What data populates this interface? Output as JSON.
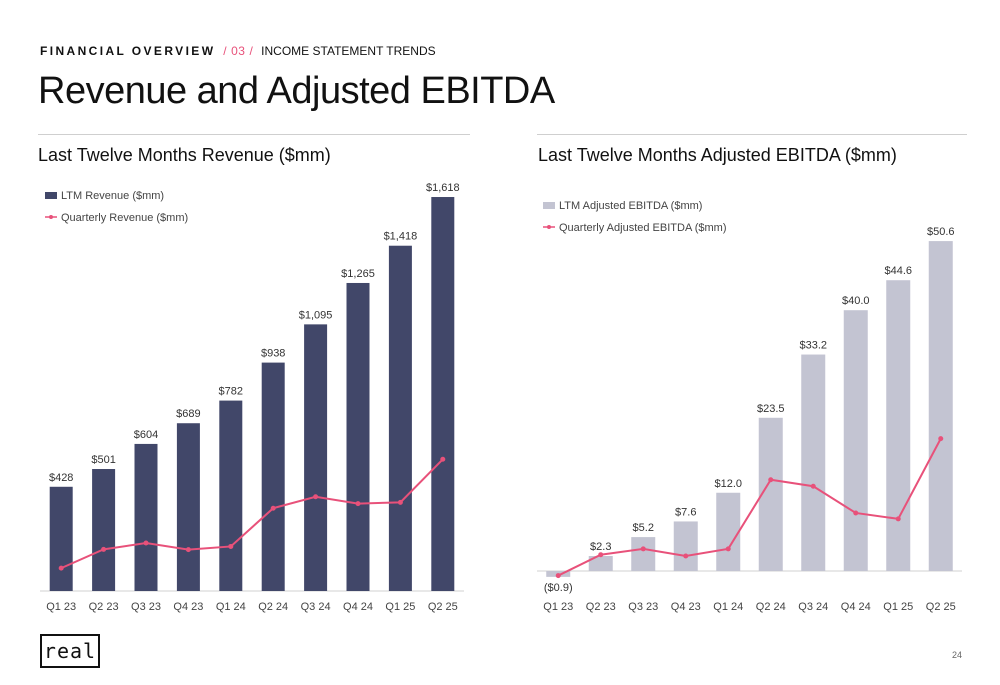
{
  "header": {
    "section": "FINANCIAL OVERVIEW",
    "separator": "/",
    "number": "03",
    "topic": "INCOME STATEMENT TRENDS",
    "title": "Revenue and Adjusted EBITDA"
  },
  "footer": {
    "logo_text": "real",
    "page_number": "24"
  },
  "colors": {
    "navy_bar": "#414769",
    "grey_bar": "#c3c4d2",
    "line_pink": "#e8517a"
  },
  "chart_data": [
    {
      "type": "bar",
      "title": "Last Twelve Months Revenue ($mm)",
      "categories": [
        "Q1 23",
        "Q2 23",
        "Q3 23",
        "Q4 23",
        "Q1 24",
        "Q2 24",
        "Q3 24",
        "Q4 24",
        "Q1 25",
        "Q2 25"
      ],
      "series": [
        {
          "name": "LTM Revenue ($mm)",
          "kind": "bar",
          "values": [
            428,
            501,
            604,
            689,
            782,
            938,
            1095,
            1265,
            1418,
            1618
          ]
        },
        {
          "name": "Quarterly Revenue ($mm)",
          "kind": "line",
          "values": [
            94,
            171,
            197,
            170,
            183,
            340,
            387,
            359,
            364,
            541
          ]
        }
      ],
      "data_labels": [
        "$428",
        "$501",
        "$604",
        "$689",
        "$782",
        "$938",
        "$1,095",
        "$1,265",
        "$1,418",
        "$1,618"
      ],
      "ylim": [
        0,
        1700
      ],
      "legend": "top-left",
      "grid": false
    },
    {
      "type": "bar",
      "title": "Last Twelve Months Adjusted EBITDA ($mm)",
      "categories": [
        "Q1 23",
        "Q2 23",
        "Q3 23",
        "Q4 23",
        "Q1 24",
        "Q2 24",
        "Q3 24",
        "Q4 24",
        "Q1 25",
        "Q2 25"
      ],
      "series": [
        {
          "name": "LTM Adjusted EBITDA ($mm)",
          "kind": "bar",
          "values": [
            -0.9,
            2.3,
            5.2,
            7.6,
            12.0,
            23.5,
            33.2,
            40.0,
            44.6,
            50.6
          ]
        },
        {
          "name": "Quarterly Adjusted EBITDA ($mm)",
          "kind": "line",
          "values": [
            -0.7,
            2.5,
            3.4,
            2.3,
            3.4,
            14.0,
            13.0,
            8.9,
            8.0,
            20.3
          ]
        }
      ],
      "data_labels": [
        "($0.9)",
        "$2.3",
        "$5.2",
        "$7.6",
        "$12.0",
        "$23.5",
        "$33.2",
        "$40.0",
        "$44.6",
        "$50.6"
      ],
      "ylim": [
        -1.5,
        52
      ],
      "legend": "top-left",
      "grid": false
    }
  ]
}
